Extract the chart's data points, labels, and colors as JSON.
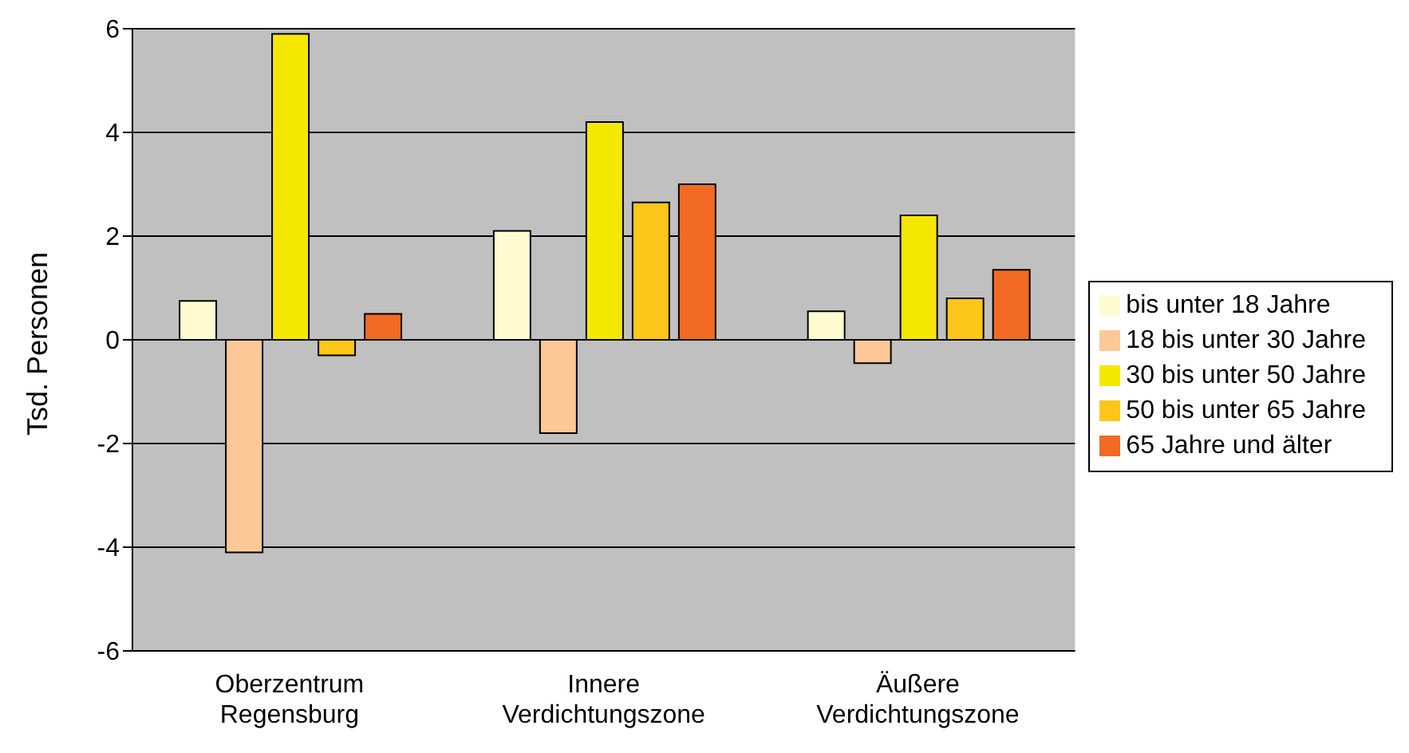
{
  "chart_data": {
    "type": "bar",
    "ylabel": "Tsd. Personen",
    "categories": [
      "Oberzentrum Regensburg",
      "Innere Verdichtungszone",
      "Äußere Verdichtungszone"
    ],
    "series": [
      {
        "name": "bis unter 18 Jahre",
        "color": "#fffbd0",
        "values": [
          0.75,
          2.1,
          0.55
        ]
      },
      {
        "name": "18 bis unter 30 Jahre",
        "color": "#fdc897",
        "values": [
          -4.1,
          -1.8,
          -0.45
        ]
      },
      {
        "name": "30 bis unter 50 Jahre",
        "color": "#f5e800",
        "values": [
          5.9,
          4.2,
          2.4
        ]
      },
      {
        "name": "50 bis unter 65 Jahre",
        "color": "#fdc61a",
        "values": [
          -0.3,
          2.65,
          0.8
        ]
      },
      {
        "name": "65 Jahre und älter",
        "color": "#f26a24",
        "values": [
          0.5,
          3.0,
          1.35
        ]
      }
    ],
    "ylim": [
      -6,
      6
    ],
    "yticks": [
      -6,
      -4,
      -2,
      0,
      2,
      4,
      6
    ],
    "grid": "y",
    "legend": "right"
  }
}
